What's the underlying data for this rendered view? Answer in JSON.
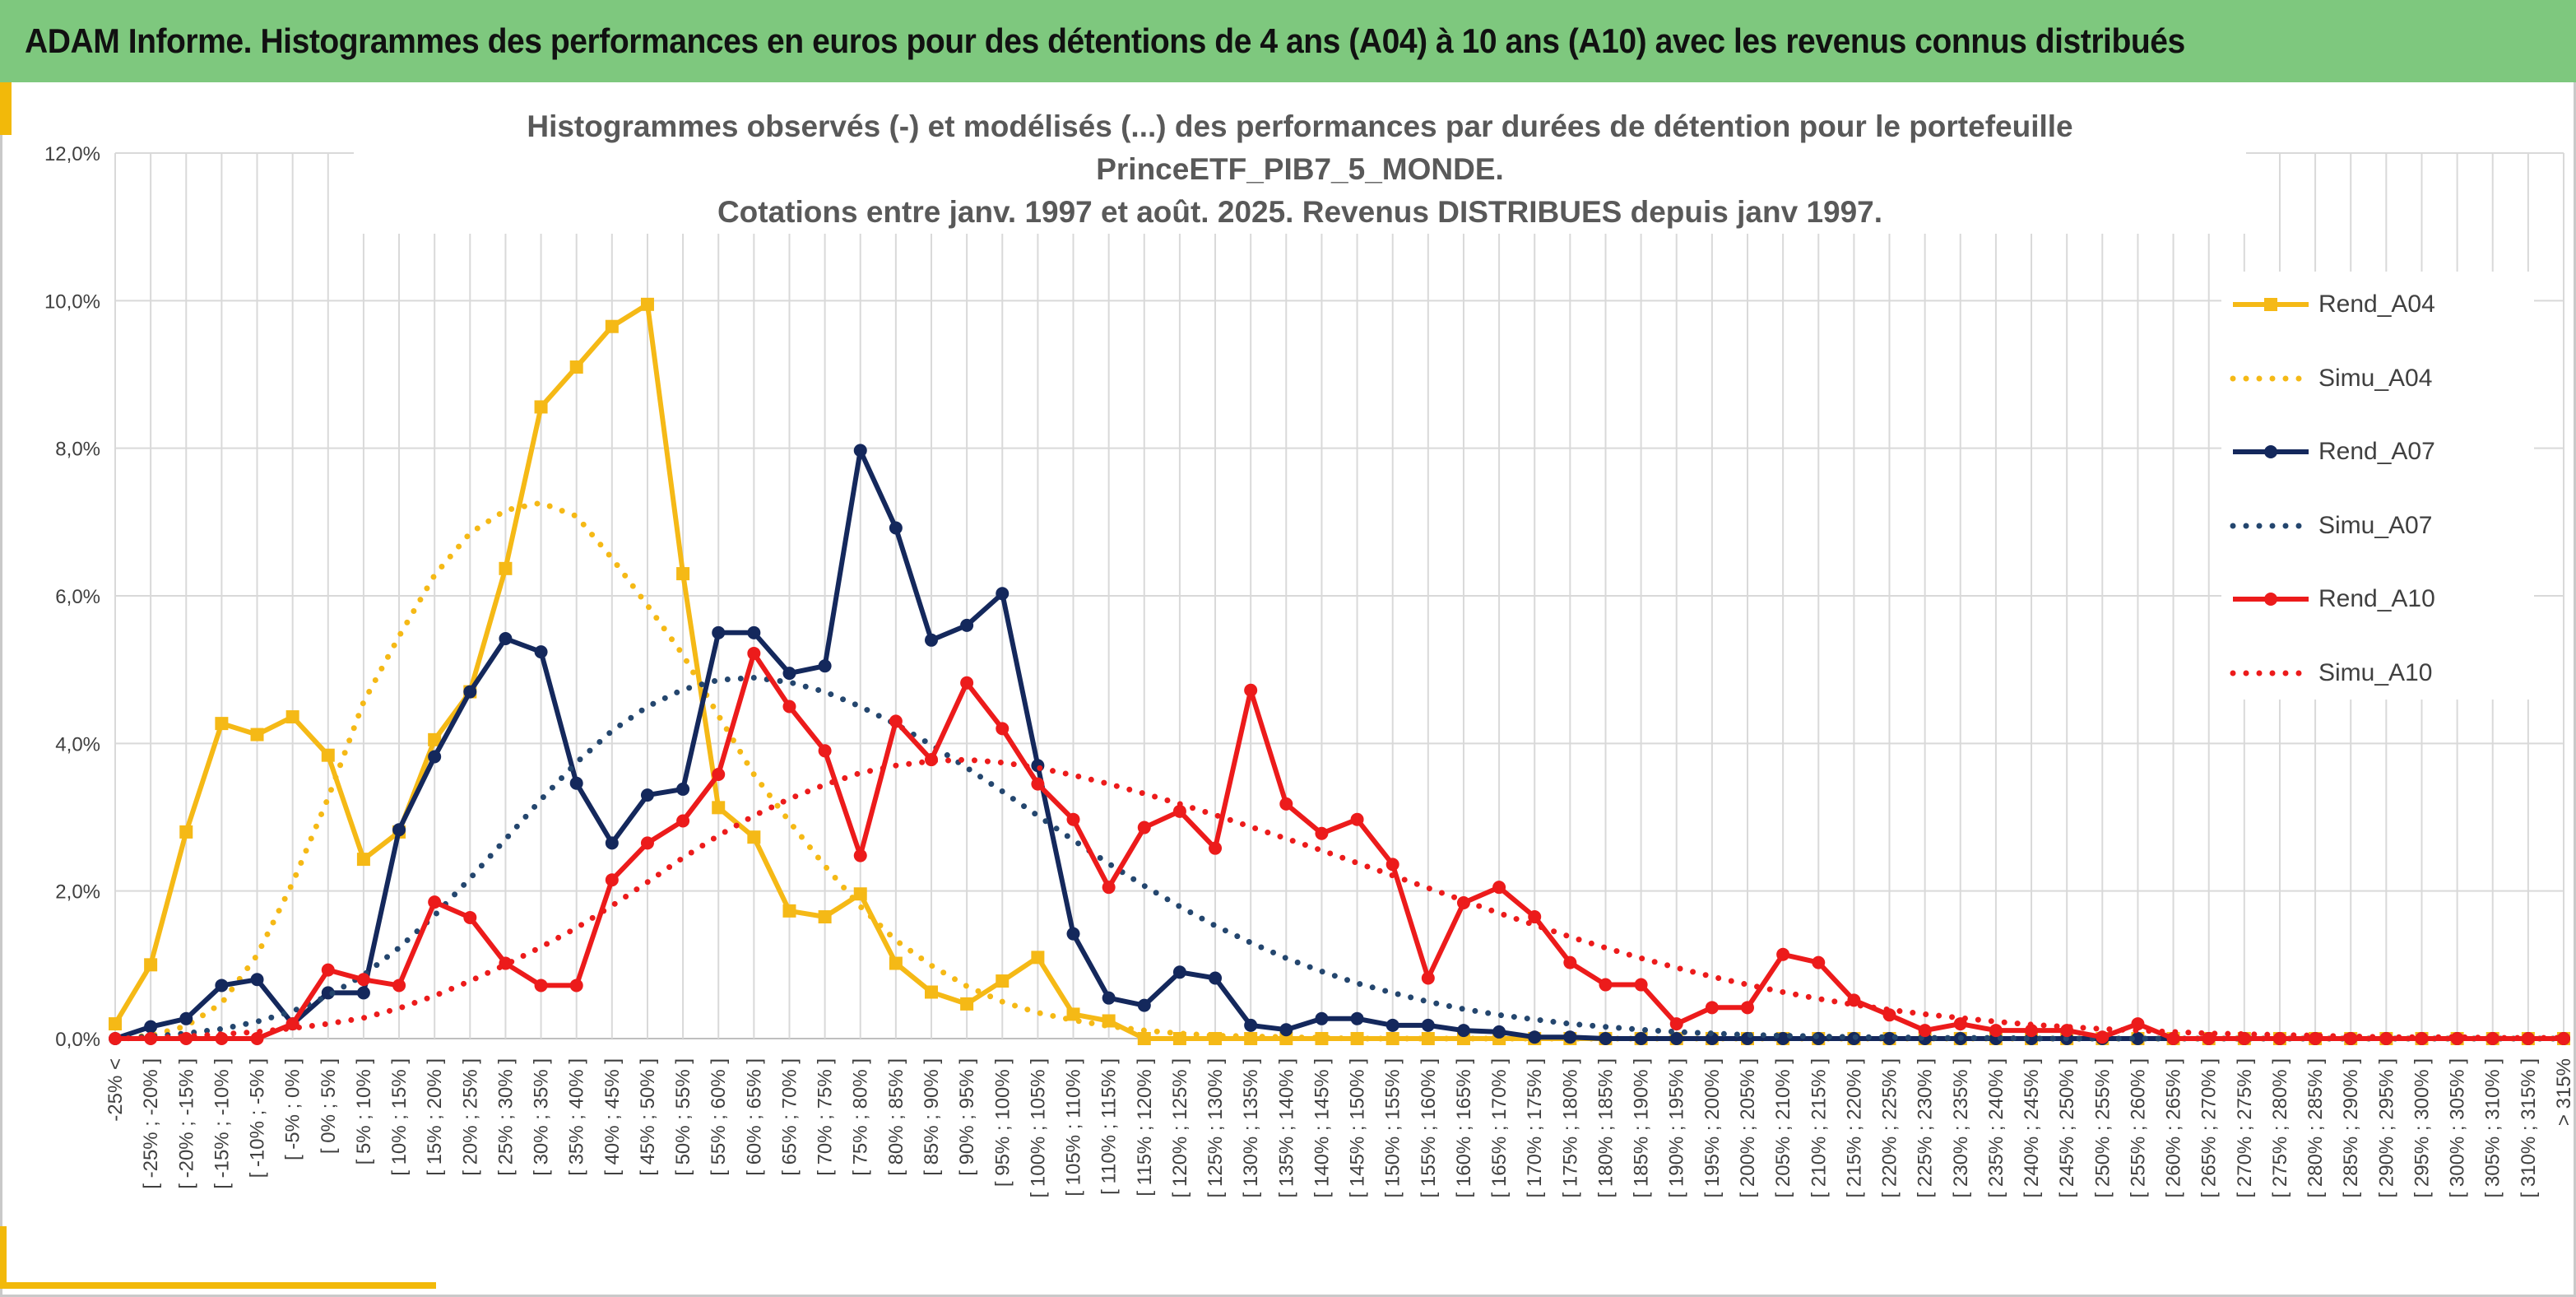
{
  "header": {
    "title": "ADAM Informe. Histogrammes des performances en euros pour des détentions de 4 ans (A04) à 10 ans (A10) avec les revenus connus distribués"
  },
  "chart_data": {
    "type": "line",
    "title_line1": "Histogrammes observés (-) et modélisés (...) des performances par durées de détention pour le portefeuille PrinceETF_PIB7_5_MONDE.",
    "title_line2": "Cotations entre janv. 1997 et août. 2025. Revenus DISTRIBUES depuis janv 1997.",
    "ylim": [
      0,
      12
    ],
    "yticks": [
      "0,0%",
      "2,0%",
      "4,0%",
      "6,0%",
      "8,0%",
      "10,0%",
      "12,0%"
    ],
    "grid": true,
    "legend_position": "right",
    "categories": [
      "-25% <",
      "[ -25% ; -20% ]",
      "[ -20% ; -15% ]",
      "[ -15% ; -10% ]",
      "[ -10% ; -5% ]",
      "[ -5% ; 0% ]",
      "[ 0% ; 5% ]",
      "[ 5% ; 10% ]",
      "[ 10% ; 15% ]",
      "[ 15% ; 20% ]",
      "[ 20% ; 25% ]",
      "[ 25% ; 30% ]",
      "[ 30% ; 35% ]",
      "[ 35% ; 40% ]",
      "[ 40% ; 45% ]",
      "[ 45% ; 50% ]",
      "[ 50% ; 55% ]",
      "[ 55% ; 60% ]",
      "[ 60% ; 65% ]",
      "[ 65% ; 70% ]",
      "[ 70% ; 75% ]",
      "[ 75% ; 80% ]",
      "[ 80% ; 85% ]",
      "[ 85% ; 90% ]",
      "[ 90% ; 95% ]",
      "[ 95% ; 100% ]",
      "[ 100% ; 105% ]",
      "[ 105% ; 110% ]",
      "[ 110% ; 115% ]",
      "[ 115% ; 120% ]",
      "[ 120% ; 125% ]",
      "[ 125% ; 130% ]",
      "[ 130% ; 135% ]",
      "[ 135% ; 140% ]",
      "[ 140% ; 145% ]",
      "[ 145% ; 150% ]",
      "[ 150% ; 155% ]",
      "[ 155% ; 160% ]",
      "[ 160% ; 165% ]",
      "[ 165% ; 170% ]",
      "[ 170% ; 175% ]",
      "[ 175% ; 180% ]",
      "[ 180% ; 185% ]",
      "[ 185% ; 190% ]",
      "[ 190% ; 195% ]",
      "[ 195% ; 200% ]",
      "[ 200% ; 205% ]",
      "[ 205% ; 210% ]",
      "[ 210% ; 215% ]",
      "[ 215% ; 220% ]",
      "[ 220% ; 225% ]",
      "[ 225% ; 230% ]",
      "[ 230% ; 235% ]",
      "[ 235% ; 240% ]",
      "[ 240% ; 245% ]",
      "[ 245% ; 250% ]",
      "[ 250% ; 255% ]",
      "[ 255% ; 260% ]",
      "[ 260% ; 265% ]",
      "[ 265% ; 270% ]",
      "[ 270% ; 275% ]",
      "[ 275% ; 280% ]",
      "[ 280% ; 285% ]",
      "[ 285% ; 290% ]",
      "[ 290% ; 295% ]",
      "[ 295% ; 300% ]",
      "[ 300% ; 305% ]",
      "[ 305% ; 310% ]",
      "[ 310% ; 315% ]",
      "> 315%"
    ],
    "series": [
      {
        "name": "Rend_A04",
        "color": "#f5b916",
        "style": "solid",
        "marker": "square",
        "values": [
          0.2,
          1.0,
          2.8,
          4.27,
          4.12,
          4.36,
          3.84,
          2.43,
          2.8,
          4.05,
          4.7,
          6.37,
          8.56,
          9.1,
          9.65,
          9.95,
          6.3,
          3.13,
          2.73,
          1.73,
          1.65,
          1.96,
          1.02,
          0.63,
          0.47,
          0.78,
          1.1,
          0.33,
          0.24,
          0,
          0,
          0,
          0,
          0,
          0,
          0,
          0,
          0,
          0,
          0,
          0,
          0,
          0,
          0,
          0,
          0,
          0,
          0,
          0,
          0,
          0,
          0,
          0,
          0,
          0,
          0,
          0,
          0,
          0,
          0,
          0,
          0,
          0,
          0,
          0,
          0,
          0,
          0,
          0,
          0
        ]
      },
      {
        "name": "Simu_A04",
        "color": "#f5b916",
        "style": "dotted",
        "marker": "none",
        "values": [
          0.01,
          0.04,
          0.17,
          0.48,
          1.13,
          2.11,
          3.26,
          4.56,
          5.45,
          6.28,
          6.85,
          7.16,
          7.26,
          7.08,
          6.51,
          5.87,
          5.2,
          4.38,
          3.58,
          2.94,
          2.34,
          1.79,
          1.33,
          0.99,
          0.71,
          0.5,
          0.35,
          0.25,
          0.17,
          0.11,
          0.07,
          0.04,
          0.03,
          0.02,
          0.01,
          0,
          0,
          0,
          0,
          0,
          0,
          0,
          0,
          0,
          0,
          0,
          0,
          0,
          0,
          0,
          0,
          0,
          0,
          0,
          0,
          0,
          0,
          0,
          0,
          0,
          0,
          0,
          0,
          0,
          0,
          0,
          0,
          0,
          0,
          0
        ]
      },
      {
        "name": "Rend_A07",
        "color": "#14285c",
        "style": "solid",
        "marker": "circle",
        "values": [
          0.0,
          0.16,
          0.27,
          0.72,
          0.8,
          0.2,
          0.62,
          0.62,
          2.83,
          3.82,
          4.7,
          5.42,
          5.24,
          3.46,
          2.65,
          3.3,
          3.38,
          5.5,
          5.5,
          4.95,
          5.05,
          7.97,
          6.92,
          5.4,
          5.6,
          6.03,
          3.7,
          1.42,
          0.55,
          0.45,
          0.9,
          0.82,
          0.18,
          0.12,
          0.27,
          0.27,
          0.18,
          0.18,
          0.11,
          0.09,
          0.02,
          0.02,
          0,
          0,
          0,
          0,
          0,
          0,
          0,
          0,
          0,
          0,
          0,
          0,
          0,
          0,
          0,
          0,
          0,
          0,
          0,
          0,
          0,
          0,
          0,
          0,
          0,
          0,
          0,
          0
        ]
      },
      {
        "name": "Simu_A07",
        "color": "#24466e",
        "style": "dotted",
        "marker": "none",
        "values": [
          0.0,
          0.03,
          0.07,
          0.13,
          0.23,
          0.37,
          0.58,
          0.86,
          1.23,
          1.67,
          2.17,
          2.7,
          3.24,
          3.74,
          4.17,
          4.5,
          4.73,
          4.86,
          4.89,
          4.83,
          4.7,
          4.5,
          4.26,
          3.98,
          3.67,
          3.35,
          3.02,
          2.69,
          2.37,
          2.07,
          1.79,
          1.53,
          1.3,
          1.09,
          0.91,
          0.75,
          0.62,
          0.5,
          0.4,
          0.32,
          0.26,
          0.2,
          0.16,
          0.12,
          0.09,
          0.07,
          0.05,
          0.04,
          0.03,
          0.02,
          0.02,
          0.01,
          0.01,
          0.01,
          0,
          0,
          0,
          0,
          0,
          0,
          0,
          0,
          0,
          0,
          0,
          0,
          0,
          0,
          0,
          0
        ]
      },
      {
        "name": "Rend_A10",
        "color": "#ec1b1b",
        "style": "solid",
        "marker": "circle",
        "values": [
          0.0,
          0.0,
          0.0,
          0.0,
          0.0,
          0.2,
          0.93,
          0.8,
          0.72,
          1.85,
          1.64,
          1.02,
          0.72,
          0.72,
          2.15,
          2.65,
          2.95,
          3.58,
          5.22,
          4.5,
          3.9,
          2.48,
          4.3,
          3.78,
          4.82,
          4.2,
          3.45,
          2.97,
          2.05,
          2.86,
          3.08,
          2.58,
          4.72,
          3.18,
          2.78,
          2.97,
          2.36,
          0.82,
          1.84,
          2.05,
          1.65,
          1.03,
          0.73,
          0.73,
          0.2,
          0.42,
          0.42,
          1.14,
          1.03,
          0.52,
          0.32,
          0.11,
          0.2,
          0.11,
          0.11,
          0.11,
          0.02,
          0.2,
          0,
          0,
          0,
          0,
          0,
          0,
          0,
          0,
          0,
          0,
          0,
          0
        ]
      },
      {
        "name": "Simu_A10",
        "color": "#ec1b1b",
        "style": "dotted",
        "marker": "none",
        "values": [
          0.0,
          0.01,
          0.03,
          0.06,
          0.09,
          0.14,
          0.2,
          0.28,
          0.41,
          0.58,
          0.78,
          1.0,
          1.24,
          1.5,
          1.8,
          2.12,
          2.45,
          2.75,
          3.02,
          3.25,
          3.44,
          3.6,
          3.7,
          3.76,
          3.78,
          3.74,
          3.67,
          3.57,
          3.45,
          3.32,
          3.18,
          3.03,
          2.87,
          2.71,
          2.55,
          2.38,
          2.21,
          2.04,
          1.87,
          1.7,
          1.54,
          1.38,
          1.23,
          1.09,
          0.96,
          0.84,
          0.73,
          0.63,
          0.54,
          0.46,
          0.39,
          0.33,
          0.28,
          0.23,
          0.19,
          0.16,
          0.13,
          0.11,
          0.09,
          0.07,
          0.06,
          0.05,
          0.04,
          0.03,
          0.02,
          0.02,
          0.02,
          0.01,
          0.01,
          0.01
        ]
      }
    ]
  }
}
